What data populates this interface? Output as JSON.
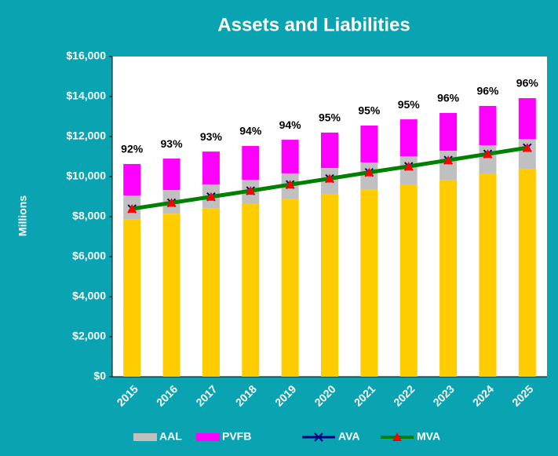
{
  "chart_data": {
    "type": "bar",
    "title": "Assets and Liabilities",
    "y_axis_label": "Millions",
    "categories": [
      "2015",
      "2016",
      "2017",
      "2018",
      "2019",
      "2020",
      "2021",
      "2022",
      "2023",
      "2024",
      "2025"
    ],
    "series": [
      {
        "color": "#ffcc00",
        "values": [
          7850,
          8150,
          8400,
          8630,
          8900,
          9140,
          9370,
          9610,
          9840,
          10120,
          10390
        ]
      },
      {
        "name": "AAL",
        "color": "#c0c0c0",
        "values": [
          1210,
          1180,
          1210,
          1210,
          1260,
          1290,
          1340,
          1410,
          1450,
          1450,
          1490
        ]
      },
      {
        "name": "PVFB",
        "color": "#ff00ff",
        "values": [
          1570,
          1570,
          1640,
          1690,
          1680,
          1770,
          1840,
          1840,
          1890,
          1960,
          2040
        ]
      },
      {
        "name": "AVA",
        "type": "line",
        "color": "#000080",
        "values": [
          8390,
          8690,
          8990,
          9290,
          9600,
          9900,
          10210,
          10510,
          10820,
          11130,
          11440
        ]
      },
      {
        "name": "MVA",
        "type": "line",
        "color": "#008000",
        "marker_color": "#ff0000",
        "values": [
          8390,
          8690,
          8990,
          9290,
          9600,
          9900,
          10210,
          10510,
          10820,
          11130,
          11440
        ]
      }
    ],
    "ratio_labels": [
      "92%",
      "93%",
      "93%",
      "94%",
      "94%",
      "95%",
      "95%",
      "95%",
      "96%",
      "96%",
      "96%"
    ],
    "ylim": [
      0,
      16000
    ],
    "yticks": [
      {
        "value": 0,
        "label": "$0"
      },
      {
        "value": 2000,
        "label": "$2,000"
      },
      {
        "value": 4000,
        "label": "$4,000"
      },
      {
        "value": 6000,
        "label": "$6,000"
      },
      {
        "value": 8000,
        "label": "$8,000"
      },
      {
        "value": 10000,
        "label": "$10,000"
      },
      {
        "value": 12000,
        "label": "$12,000"
      },
      {
        "value": 14000,
        "label": "$14,000"
      },
      {
        "value": 16000,
        "label": "$16,000"
      }
    ],
    "stacked": true,
    "legend": "bottom"
  }
}
